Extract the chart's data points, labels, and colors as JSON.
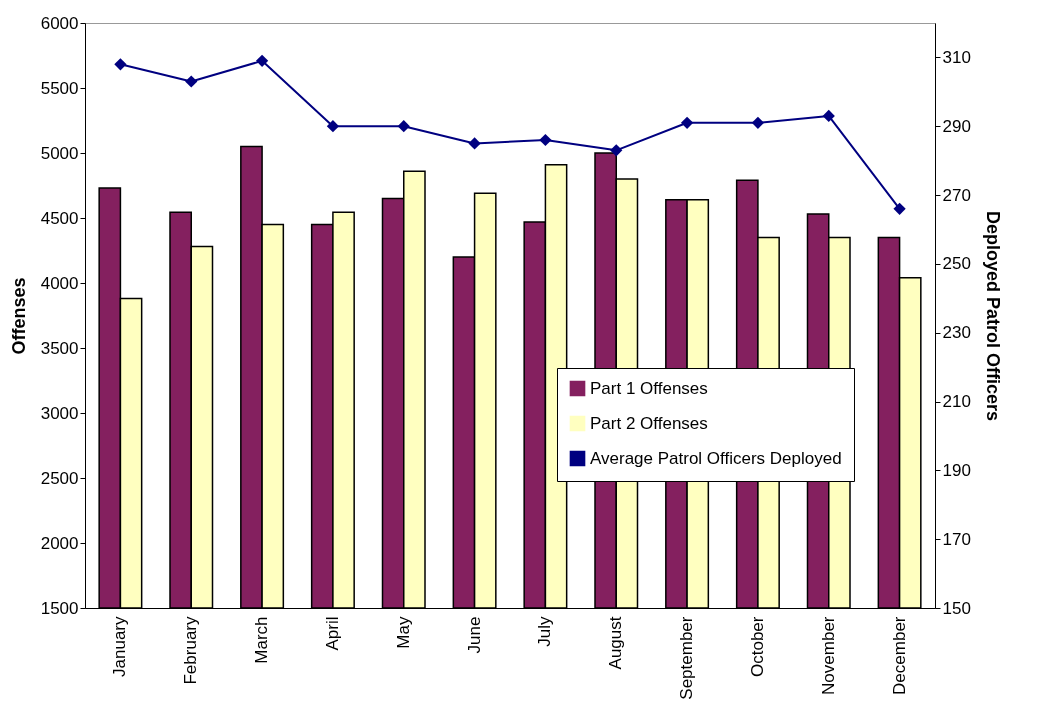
{
  "chart_data": {
    "type": "bar",
    "ylabel": "Offenses",
    "y2label": "Deployed Patrol Officers",
    "categories": [
      "January",
      "February",
      "March",
      "April",
      "May",
      "June",
      "July",
      "August",
      "September",
      "October",
      "November",
      "December"
    ],
    "series": [
      {
        "name": "Part 1 Offenses",
        "color": "#84205f",
        "values": [
          4730,
          4545,
          5050,
          4450,
          4650,
          4200,
          4470,
          5000,
          4640,
          4790,
          4530,
          4350
        ]
      },
      {
        "name": "Part 2 Offenses",
        "color": "#ffffc0",
        "values": [
          3880,
          4280,
          4450,
          4545,
          4860,
          4690,
          4910,
          4800,
          4640,
          4350,
          4350,
          4040
        ]
      },
      {
        "name": "Average Patrol Officers Deployed",
        "type": "line",
        "axis": "y2",
        "color": "#000080",
        "marker": "diamond",
        "line_style": "solid",
        "values": [
          308,
          303,
          309,
          290,
          290,
          285,
          286,
          283,
          291,
          291,
          293,
          266
        ]
      }
    ],
    "ylim": [
      1500,
      6000
    ],
    "yticks": [
      1500,
      2000,
      2500,
      3000,
      3500,
      4000,
      4500,
      5000,
      5500,
      6000
    ],
    "y2lim": [
      150,
      320
    ],
    "y2ticks": [
      150,
      170,
      190,
      210,
      230,
      250,
      270,
      290,
      310
    ],
    "grid": false,
    "legend": "bottom right"
  }
}
